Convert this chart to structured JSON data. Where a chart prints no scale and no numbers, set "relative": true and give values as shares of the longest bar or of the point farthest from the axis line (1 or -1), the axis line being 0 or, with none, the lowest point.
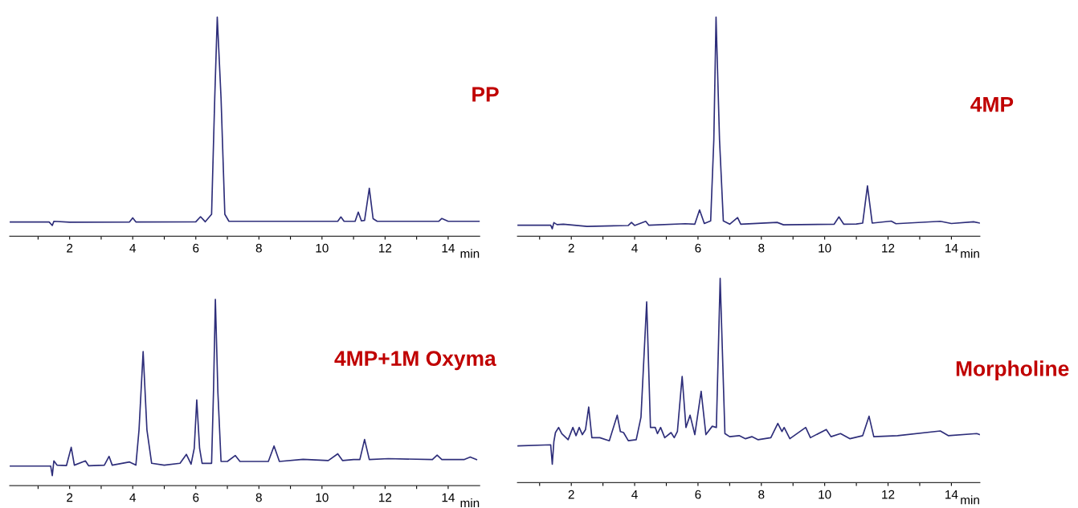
{
  "chart_data": [
    {
      "type": "line",
      "title": "PP",
      "xlabel": "min",
      "relative": true,
      "xlim": [
        0.1,
        15.0
      ],
      "grid": false,
      "legend": false,
      "xticks": [
        {
          "value": 1,
          "label": null
        },
        2,
        {
          "value": 3,
          "label": null
        },
        4,
        {
          "value": 5,
          "label": null
        },
        6,
        {
          "value": 7,
          "label": null
        },
        8,
        {
          "value": 9,
          "label": null
        },
        10,
        {
          "value": 11,
          "label": null
        },
        12,
        {
          "value": 13,
          "label": null
        },
        14
      ],
      "series": [
        {
          "color": "#2e2e7a",
          "x": [
            0.1,
            1.35,
            1.45,
            1.5,
            2.0,
            3.9,
            4.0,
            4.1,
            6.0,
            6.15,
            6.3,
            6.5,
            6.6,
            6.68,
            6.8,
            6.92,
            7.05,
            10.5,
            10.6,
            10.7,
            11.05,
            11.15,
            11.25,
            11.35,
            11.5,
            11.62,
            11.75,
            13.7,
            13.8,
            14.0,
            15.0
          ],
          "values": [
            0.065,
            0.065,
            0.049,
            0.068,
            0.064,
            0.065,
            0.084,
            0.065,
            0.066,
            0.089,
            0.066,
            0.1,
            0.63,
            1.0,
            0.63,
            0.1,
            0.068,
            0.068,
            0.088,
            0.068,
            0.068,
            0.11,
            0.07,
            0.072,
            0.219,
            0.08,
            0.068,
            0.068,
            0.081,
            0.068,
            0.068
          ]
        }
      ]
    },
    {
      "type": "line",
      "title": "4MP",
      "xlabel": "min",
      "relative": true,
      "xlim": [
        0.3,
        14.9
      ],
      "grid": false,
      "legend": false,
      "xticks": [
        {
          "value": 1,
          "label": null
        },
        2,
        {
          "value": 3,
          "label": null
        },
        4,
        {
          "value": 5,
          "label": null
        },
        6,
        {
          "value": 7,
          "label": null
        },
        8,
        {
          "value": 9,
          "label": null
        },
        10,
        {
          "value": 11,
          "label": null
        },
        12,
        {
          "value": 13,
          "label": null
        },
        14
      ],
      "series": [
        {
          "color": "#2e2e7a",
          "x": [
            0.3,
            1.35,
            1.4,
            1.45,
            1.55,
            1.75,
            2.5,
            3.8,
            3.9,
            4.0,
            4.35,
            4.45,
            5.6,
            5.9,
            6.05,
            6.2,
            6.4,
            6.5,
            6.57,
            6.68,
            6.8,
            7.0,
            7.25,
            7.35,
            8.5,
            8.7,
            10.3,
            10.45,
            10.6,
            11.0,
            11.2,
            11.35,
            11.5,
            12.1,
            12.25,
            13.65,
            14.0,
            14.7,
            14.9
          ],
          "values": [
            0.05,
            0.05,
            0.034,
            0.062,
            0.053,
            0.055,
            0.045,
            0.049,
            0.063,
            0.049,
            0.068,
            0.05,
            0.057,
            0.055,
            0.12,
            0.058,
            0.07,
            0.44,
            1.0,
            0.44,
            0.07,
            0.055,
            0.085,
            0.055,
            0.063,
            0.052,
            0.055,
            0.088,
            0.055,
            0.056,
            0.06,
            0.23,
            0.06,
            0.069,
            0.057,
            0.068,
            0.058,
            0.066,
            0.06
          ]
        }
      ]
    },
    {
      "type": "line",
      "title": "4MP+1M Oxyma",
      "xlabel": "min",
      "relative": true,
      "xlim": [
        0.1,
        15.0
      ],
      "grid": false,
      "legend": false,
      "xticks": [
        {
          "value": 1,
          "label": null
        },
        2,
        {
          "value": 3,
          "label": null
        },
        4,
        {
          "value": 5,
          "label": null
        },
        6,
        {
          "value": 7,
          "label": null
        },
        8,
        {
          "value": 9,
          "label": null
        },
        10,
        {
          "value": 11,
          "label": null
        },
        12,
        {
          "value": 13,
          "label": null
        },
        14
      ],
      "series": [
        {
          "color": "#2e2e7a",
          "x": [
            0.1,
            1.4,
            1.45,
            1.5,
            1.6,
            1.9,
            2.05,
            2.15,
            2.5,
            2.6,
            3.1,
            3.25,
            3.35,
            3.9,
            4.1,
            4.2,
            4.33,
            4.45,
            4.6,
            5.0,
            5.5,
            5.7,
            5.85,
            5.95,
            6.03,
            6.12,
            6.2,
            6.5,
            6.56,
            6.62,
            6.7,
            6.8,
            7.0,
            7.25,
            7.4,
            8.3,
            8.48,
            8.65,
            9.4,
            10.2,
            10.5,
            10.65,
            11.0,
            11.2,
            11.35,
            11.5,
            12.1,
            13.5,
            13.65,
            13.8,
            14.5,
            14.7,
            14.9
          ],
          "values": [
            0.105,
            0.105,
            0.054,
            0.133,
            0.11,
            0.108,
            0.206,
            0.11,
            0.133,
            0.107,
            0.11,
            0.157,
            0.11,
            0.127,
            0.11,
            0.3,
            0.72,
            0.3,
            0.12,
            0.11,
            0.12,
            0.168,
            0.115,
            0.2,
            0.46,
            0.2,
            0.12,
            0.12,
            0.5,
            1.0,
            0.5,
            0.13,
            0.13,
            0.162,
            0.13,
            0.13,
            0.213,
            0.13,
            0.141,
            0.135,
            0.171,
            0.135,
            0.14,
            0.14,
            0.248,
            0.14,
            0.145,
            0.14,
            0.164,
            0.14,
            0.14,
            0.154,
            0.14
          ]
        }
      ]
    },
    {
      "type": "line",
      "title": "Morpholine",
      "xlabel": "min",
      "relative": true,
      "xlim": [
        0.3,
        14.9
      ],
      "grid": false,
      "legend": false,
      "xticks": [
        {
          "value": 1,
          "label": null
        },
        2,
        {
          "value": 3,
          "label": null
        },
        4,
        {
          "value": 5,
          "label": null
        },
        6,
        {
          "value": 7,
          "label": null
        },
        8,
        {
          "value": 9,
          "label": null
        },
        10,
        {
          "value": 11,
          "label": null
        },
        12,
        {
          "value": 13,
          "label": null
        },
        14
      ],
      "series": [
        {
          "color": "#2e2e7a",
          "x": [
            0.3,
            1.35,
            1.4,
            1.45,
            1.5,
            1.6,
            1.7,
            1.9,
            2.05,
            2.15,
            2.25,
            2.35,
            2.45,
            2.55,
            2.65,
            2.9,
            3.2,
            3.45,
            3.55,
            3.65,
            3.8,
            4.05,
            4.2,
            4.38,
            4.5,
            4.65,
            4.72,
            4.82,
            4.95,
            5.15,
            5.25,
            5.35,
            5.5,
            5.62,
            5.75,
            5.9,
            6.1,
            6.25,
            6.45,
            6.58,
            6.7,
            6.85,
            7.0,
            7.3,
            7.5,
            7.7,
            7.9,
            8.3,
            8.52,
            8.65,
            8.72,
            8.9,
            9.4,
            9.55,
            10.05,
            10.2,
            10.5,
            10.8,
            11.2,
            11.4,
            11.55,
            12.3,
            13.65,
            13.9,
            14.8,
            14.9
          ],
          "values": [
            0.18,
            0.185,
            0.09,
            0.2,
            0.245,
            0.27,
            0.24,
            0.21,
            0.27,
            0.23,
            0.27,
            0.235,
            0.26,
            0.37,
            0.22,
            0.22,
            0.205,
            0.33,
            0.25,
            0.245,
            0.205,
            0.21,
            0.32,
            0.885,
            0.27,
            0.27,
            0.24,
            0.27,
            0.22,
            0.245,
            0.22,
            0.25,
            0.52,
            0.27,
            0.33,
            0.235,
            0.447,
            0.235,
            0.276,
            0.27,
            1.0,
            0.24,
            0.225,
            0.23,
            0.215,
            0.225,
            0.21,
            0.22,
            0.29,
            0.25,
            0.27,
            0.215,
            0.27,
            0.22,
            0.26,
            0.225,
            0.24,
            0.215,
            0.23,
            0.325,
            0.225,
            0.23,
            0.253,
            0.23,
            0.24,
            0.235
          ]
        }
      ]
    }
  ]
}
